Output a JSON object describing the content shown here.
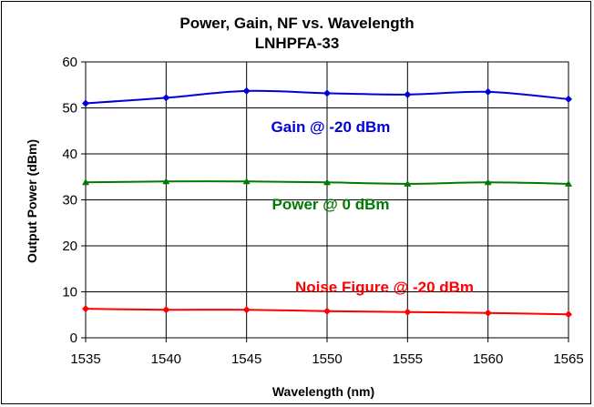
{
  "chart_data": {
    "type": "line",
    "title": "Power, Gain, NF vs. Wavelength",
    "subtitle": "LNHPFA-33",
    "xlabel": "Wavelength (nm)",
    "ylabel": "Output Power (dBm)",
    "xlim": [
      1535,
      1565
    ],
    "ylim": [
      0,
      60
    ],
    "x_ticks": [
      "1535",
      "1540",
      "1545",
      "1550",
      "1555",
      "1560",
      "1565"
    ],
    "y_ticks": [
      "0",
      "10",
      "20",
      "30",
      "40",
      "50",
      "60"
    ],
    "grid": true,
    "legend": "none",
    "x": [
      1535,
      1540,
      1545,
      1550,
      1555,
      1560,
      1565
    ],
    "series": [
      {
        "name": "Gain @ -20 dBm",
        "color": "#0000d8",
        "marker": "diamond",
        "values": [
          51.0,
          52.2,
          53.7,
          53.2,
          52.9,
          53.5,
          51.9
        ]
      },
      {
        "name": "Power @ 0 dBm",
        "color": "#007a00",
        "marker": "triangle",
        "values": [
          33.8,
          34.0,
          34.0,
          33.8,
          33.5,
          33.8,
          33.5
        ]
      },
      {
        "name": "Noise Figure @ -20 dBm",
        "color": "#ff0000",
        "marker": "diamond",
        "values": [
          6.3,
          6.1,
          6.1,
          5.8,
          5.6,
          5.4,
          5.1
        ]
      }
    ]
  }
}
